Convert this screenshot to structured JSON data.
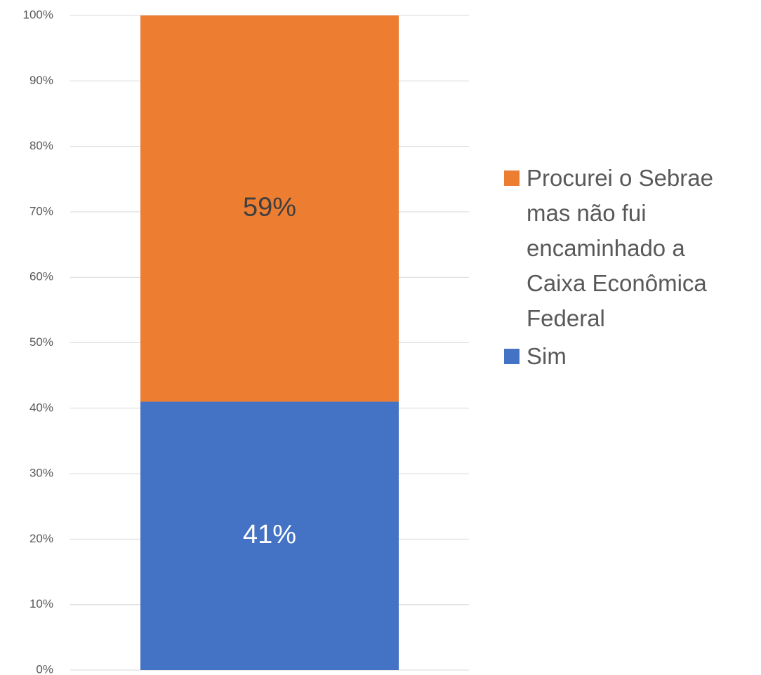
{
  "chart_data": {
    "type": "stacked_bar",
    "categories": [
      null
    ],
    "series": [
      {
        "name": "Sim",
        "color": "#4472c4",
        "values": [
          41
        ],
        "value_labels": [
          "41%"
        ]
      },
      {
        "name": "Procurei o Sebrae mas não fui encaminhado a Caixa Econômica Federal",
        "color": "#ed7d31",
        "values": [
          59
        ],
        "value_labels": [
          "59%"
        ]
      }
    ],
    "ylim": [
      0,
      100
    ],
    "yticks": [
      {
        "value": 0,
        "label": "0%"
      },
      {
        "value": 10,
        "label": "10%"
      },
      {
        "value": 20,
        "label": "20%"
      },
      {
        "value": 30,
        "label": "30%"
      },
      {
        "value": 40,
        "label": "40%"
      },
      {
        "value": 50,
        "label": "50%"
      },
      {
        "value": 60,
        "label": "60%"
      },
      {
        "value": 70,
        "label": "70%"
      },
      {
        "value": 80,
        "label": "80%"
      },
      {
        "value": 90,
        "label": "90%"
      },
      {
        "value": 100,
        "label": "100%"
      }
    ],
    "grid": true,
    "legend": "right"
  }
}
